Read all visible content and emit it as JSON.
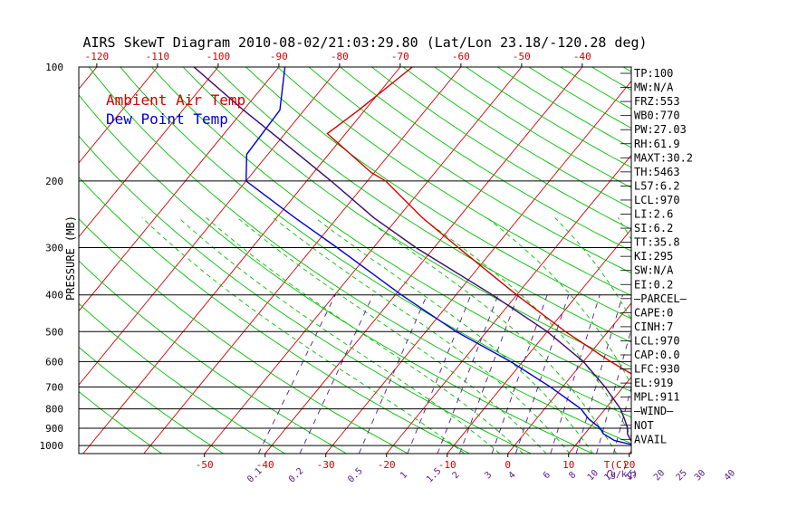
{
  "title": "AIRS SkewT Diagram 2010-08-02/21:03:29.80 (Lat/Lon 23.18/-120.28 deg)",
  "chart_data": {
    "type": "line",
    "xlabel": "T(C)",
    "ylabel": "PRESSURE (MB)",
    "pressure_axis": {
      "ylim": [
        1050,
        100
      ],
      "scale": "log",
      "ticks": [
        100,
        200,
        300,
        400,
        500,
        600,
        700,
        800,
        900,
        1000
      ]
    },
    "temperature_axis_bottom": {
      "ticks": [
        -50,
        -40,
        -30,
        -20,
        -10,
        0,
        10,
        20
      ],
      "unit_label": "T(C)"
    },
    "temperature_axis_top": {
      "ticks": [
        -120,
        -110,
        -100,
        -90,
        -80,
        -70,
        -60,
        -50,
        -40
      ]
    },
    "mixing_ratio_labels": [
      "0.1",
      "0.2",
      "0.5",
      "1",
      "1.5",
      "2",
      "3",
      "4",
      "6",
      "8",
      "10",
      "12",
      "15",
      "20",
      "25",
      "30",
      "40"
    ],
    "mixing_ratio_unit": "(g/kg)",
    "legend": [
      {
        "name": "Ambient Air Temp",
        "color": "#d00000"
      },
      {
        "name": "Dew Point Temp",
        "color": "#0000d0"
      }
    ],
    "series": [
      {
        "name": "Ambient Air Temp",
        "color": "#d00000",
        "points": [
          [
            1000,
            21.8
          ],
          [
            980,
            19.0
          ],
          [
            950,
            18.4
          ],
          [
            900,
            18.5
          ],
          [
            850,
            19.5
          ],
          [
            800,
            20.5
          ],
          [
            700,
            15.0
          ],
          [
            600,
            4.5
          ],
          [
            500,
            -7.0
          ],
          [
            400,
            -20.0
          ],
          [
            300,
            -36.0
          ],
          [
            250,
            -46.0
          ],
          [
            200,
            -57.0
          ],
          [
            190,
            -60.5
          ],
          [
            150,
            -73.0
          ],
          [
            130,
            -71.0
          ],
          [
            100,
            -68.0
          ]
        ]
      },
      {
        "name": "Dew Point Temp",
        "color": "#0000d0",
        "points": [
          [
            1000,
            20.0
          ],
          [
            970,
            15.8
          ],
          [
            930,
            13.0
          ],
          [
            900,
            11.8
          ],
          [
            850,
            8.6
          ],
          [
            800,
            6.0
          ],
          [
            700,
            -2.0
          ],
          [
            600,
            -12.0
          ],
          [
            500,
            -25.0
          ],
          [
            400,
            -39.0
          ],
          [
            300,
            -56.0
          ],
          [
            250,
            -67.0
          ],
          [
            200,
            -80.0
          ],
          [
            170,
            -83.5
          ],
          [
            130,
            -84.0
          ],
          [
            100,
            -89.0
          ]
        ]
      },
      {
        "name": "Parcel",
        "color": "#3a0a6a",
        "points": [
          [
            1000,
            21.3
          ],
          [
            970,
            18.5
          ],
          [
            930,
            17.0
          ],
          [
            900,
            16.3
          ],
          [
            850,
            14.5
          ],
          [
            800,
            12.5
          ],
          [
            700,
            7.0
          ],
          [
            600,
            0.0
          ],
          [
            500,
            -10.0
          ],
          [
            400,
            -24.0
          ],
          [
            300,
            -43.0
          ],
          [
            250,
            -54.0
          ],
          [
            200,
            -66.0
          ],
          [
            170,
            -75.0
          ],
          [
            130,
            -90.0
          ],
          [
            100,
            -104.0
          ]
        ]
      }
    ]
  },
  "indices": [
    "TP:100",
    "MW:N/A",
    "FRZ:553",
    "WB0:770",
    "PW:27.03",
    "RH:61.9",
    "MAXT:30.2",
    "TH:5463",
    "L57:6.2",
    "LCL:970",
    "LI:2.6",
    "SI:6.2",
    "TT:35.8",
    "KI:295",
    "SW:N/A",
    "EI:0.2",
    "—PARCEL—",
    "CAPE:0",
    "CINH:7",
    "LCL:970",
    "CAP:0.0",
    "LFC:930",
    "EL:919",
    "MPL:911",
    "—WIND—",
    "NOT",
    "AVAIL"
  ]
}
